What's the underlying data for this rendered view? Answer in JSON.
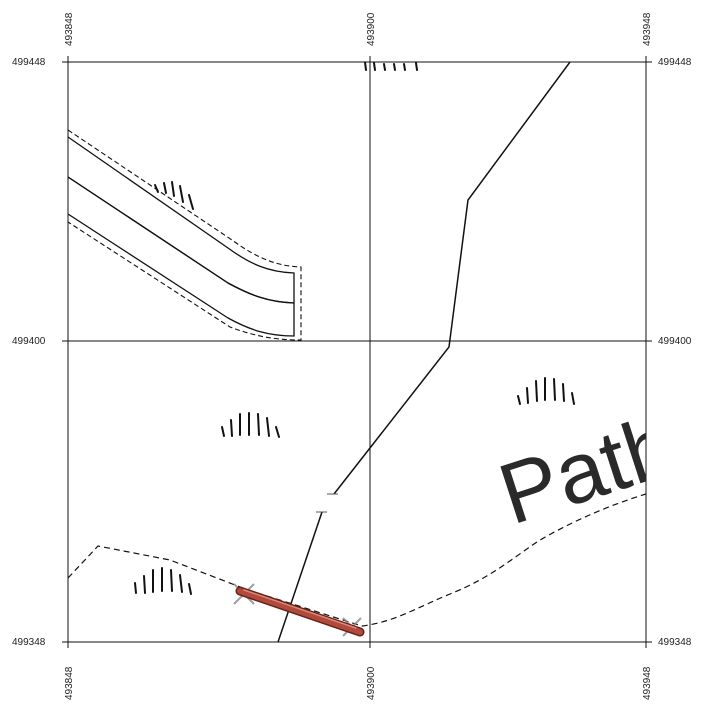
{
  "map": {
    "grid": {
      "eastings": [
        "493848",
        "493900",
        "493948"
      ],
      "northings": [
        "499448",
        "499400",
        "499348"
      ]
    },
    "feature_label": "Path",
    "colors": {
      "line": "#111111",
      "marker_fill": "#b04a3c",
      "marker_edge": "#6b1f16"
    }
  }
}
